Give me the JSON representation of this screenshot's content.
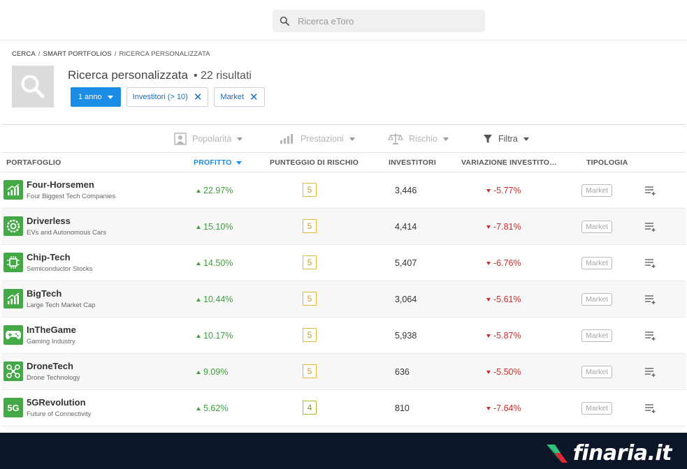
{
  "search": {
    "placeholder": "Ricerca eToro"
  },
  "breadcrumb": [
    "CERCA",
    "SMART PORTFOLIOS",
    "RICERCA PERSONALIZZATA"
  ],
  "header": {
    "title": "Ricerca personalizzata",
    "count": "• 22 risultati"
  },
  "chips": {
    "period": "1 anno",
    "investors": "Investitori (> 10)",
    "market": "Market"
  },
  "filters": {
    "popularity": "Popolarità",
    "performance": "Prestazioni",
    "risk": "Rischio",
    "filter": "Filtra"
  },
  "columns": {
    "portfolio": "PORTAFOGLIO",
    "profit": "PROFITTO",
    "risk_score": "PUNTEGGIO DI RISCHIO",
    "investors": "INVESTITORI",
    "investor_change": "VARIAZIONE INVESTITO…",
    "type": "TIPOLOGIA"
  },
  "rows": [
    {
      "name": "Four-Horsemen",
      "subtitle": "Four Biggest Tech Companies",
      "icon": "chart-growth-icon",
      "profit": "22.97%",
      "risk": "5",
      "investors": "3,446",
      "change": "-5.77%",
      "type": "Market"
    },
    {
      "name": "Driverless",
      "subtitle": "EVs and Autonomous Cars",
      "icon": "wheel-icon",
      "profit": "15.10%",
      "risk": "5",
      "investors": "4,414",
      "change": "-7.81%",
      "type": "Market"
    },
    {
      "name": "Chip-Tech",
      "subtitle": "Semiconductor Stocks",
      "icon": "chip-icon",
      "profit": "14.50%",
      "risk": "5",
      "investors": "5,407",
      "change": "-6.76%",
      "type": "Market"
    },
    {
      "name": "BigTech",
      "subtitle": "Large Tech Market Cap",
      "icon": "chart-growth-icon",
      "profit": "10.44%",
      "risk": "5",
      "investors": "3,064",
      "change": "-5.61%",
      "type": "Market"
    },
    {
      "name": "InTheGame",
      "subtitle": "Gaming Industry",
      "icon": "gamepad-icon",
      "profit": "10.17%",
      "risk": "5",
      "investors": "5,938",
      "change": "-5.87%",
      "type": "Market"
    },
    {
      "name": "DroneTech",
      "subtitle": "Drone Technology",
      "icon": "drone-icon",
      "profit": "9.09%",
      "risk": "5",
      "investors": "636",
      "change": "-5.50%",
      "type": "Market"
    },
    {
      "name": "5GRevolution",
      "subtitle": "Future of Connectivity",
      "icon": "5g-icon",
      "icon_text": "5G",
      "profit": "5.62%",
      "risk": "4",
      "investors": "810",
      "change": "-7.64%",
      "type": "Market"
    }
  ],
  "footer": {
    "logo_text": "finaria.it"
  },
  "colors": {
    "accent": "#1a8ee5",
    "positive": "#3e9d3e",
    "negative": "#d22b2b",
    "portfolio_icon": "#43a846",
    "footer": "#0b1628"
  }
}
